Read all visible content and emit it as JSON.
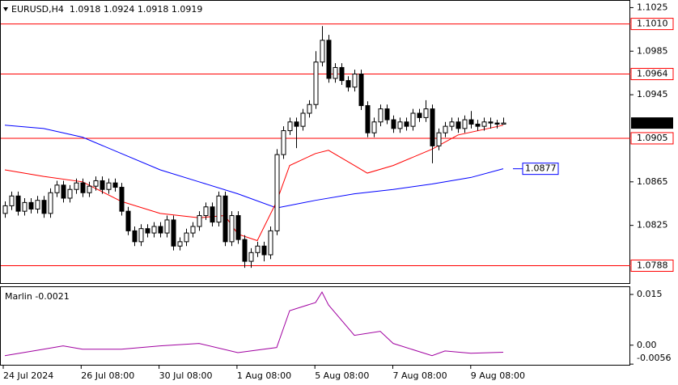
{
  "chart_data": [
    {
      "type": "candlestick",
      "title": "EURUSD,H4  1.0918 1.0924 1.0918 1.0919",
      "ylim": [
        1.0772,
        1.1032
      ],
      "yticks": [
        1.1025,
        1.0985,
        1.0945,
        1.0865,
        1.0825
      ],
      "levels": [
        {
          "value": 1.101,
          "label": "1.1010"
        },
        {
          "value": 1.0964,
          "label": "1.0964"
        },
        {
          "value": 1.0905,
          "label": "1.0905"
        },
        {
          "value": 1.0788,
          "label": "1.0788"
        }
      ],
      "level_color": "#ff0000",
      "up_color": "#ffffff",
      "down_color": "#000000",
      "candles": [
        [
          1.0836,
          1.0847,
          1.0832,
          1.0843
        ],
        [
          1.0843,
          1.0856,
          1.0839,
          1.0852
        ],
        [
          1.0852,
          1.0856,
          1.0834,
          1.0838
        ],
        [
          1.0838,
          1.085,
          1.0834,
          1.0846
        ],
        [
          1.0846,
          1.085,
          1.0836,
          1.084
        ],
        [
          1.084,
          1.0852,
          1.0836,
          1.0848
        ],
        [
          1.0848,
          1.0852,
          1.0832,
          1.0836
        ],
        [
          1.0836,
          1.0859,
          1.0832,
          1.0855
        ],
        [
          1.0855,
          1.0866,
          1.0851,
          1.0862
        ],
        [
          1.0862,
          1.0866,
          1.0846,
          1.085
        ],
        [
          1.085,
          1.0862,
          1.0846,
          1.0858
        ],
        [
          1.0858,
          1.0868,
          1.0854,
          1.0864
        ],
        [
          1.0864,
          1.0868,
          1.0851,
          1.0855
        ],
        [
          1.0855,
          1.0865,
          1.0851,
          1.0861
        ],
        [
          1.0861,
          1.087,
          1.0857,
          1.0866
        ],
        [
          1.0866,
          1.087,
          1.0854,
          1.0858
        ],
        [
          1.0858,
          1.0868,
          1.0854,
          1.0864
        ],
        [
          1.0864,
          1.0868,
          1.0856,
          1.086
        ],
        [
          1.086,
          1.0864,
          1.0834,
          1.0838
        ],
        [
          1.0838,
          1.0842,
          1.0816,
          1.082
        ],
        [
          1.082,
          1.0824,
          1.0806,
          1.081
        ],
        [
          1.081,
          1.0826,
          1.0806,
          1.0822
        ],
        [
          1.0822,
          1.0826,
          1.0814,
          1.0818
        ],
        [
          1.0818,
          1.0828,
          1.0814,
          1.0824
        ],
        [
          1.0824,
          1.0828,
          1.0814,
          1.0818
        ],
        [
          1.0818,
          1.0834,
          1.0814,
          1.083
        ],
        [
          1.083,
          1.0834,
          1.0802,
          1.0806
        ],
        [
          1.0806,
          1.0814,
          1.0802,
          1.081
        ],
        [
          1.081,
          1.0822,
          1.0806,
          1.0818
        ],
        [
          1.0818,
          1.0828,
          1.0814,
          1.0824
        ],
        [
          1.0824,
          1.0838,
          1.082,
          1.0834
        ],
        [
          1.0834,
          1.0846,
          1.083,
          1.0842
        ],
        [
          1.0842,
          1.0846,
          1.0824,
          1.0828
        ],
        [
          1.0828,
          1.0856,
          1.0824,
          1.0852
        ],
        [
          1.0852,
          1.0856,
          1.0806,
          1.081
        ],
        [
          1.081,
          1.0838,
          1.0806,
          1.0834
        ],
        [
          1.0834,
          1.0838,
          1.0808,
          1.0812
        ],
        [
          1.0812,
          1.0816,
          1.0786,
          1.0792
        ],
        [
          1.0792,
          1.0804,
          1.0786,
          1.08
        ],
        [
          1.08,
          1.081,
          1.0796,
          1.0806
        ],
        [
          1.0806,
          1.081,
          1.0792,
          1.0798
        ],
        [
          1.0798,
          1.0824,
          1.0794,
          1.082
        ],
        [
          1.082,
          1.0895,
          1.0816,
          1.089
        ],
        [
          1.089,
          1.0916,
          1.0886,
          1.0912
        ],
        [
          1.0912,
          1.0924,
          1.0908,
          1.092
        ],
        [
          1.092,
          1.0924,
          1.0896,
          1.0916
        ],
        [
          1.0916,
          1.0932,
          1.0912,
          1.0928
        ],
        [
          1.0928,
          1.094,
          1.0924,
          1.0936
        ],
        [
          1.0936,
          1.0985,
          1.0932,
          1.0975
        ],
        [
          1.0975,
          1.1008,
          1.0971,
          1.0995
        ],
        [
          1.0995,
          1.1,
          1.0956,
          1.096
        ],
        [
          1.096,
          1.0974,
          1.0956,
          1.097
        ],
        [
          1.097,
          1.0974,
          1.0954,
          1.0958
        ],
        [
          1.0958,
          1.0962,
          1.0948,
          1.0952
        ],
        [
          1.0952,
          1.0968,
          1.0948,
          1.0964
        ],
        [
          1.0964,
          1.0968,
          1.0931,
          1.0935
        ],
        [
          1.0935,
          1.0939,
          1.0906,
          1.091
        ],
        [
          1.091,
          1.0924,
          1.0906,
          1.092
        ],
        [
          1.092,
          1.0936,
          1.0916,
          1.0932
        ],
        [
          1.0932,
          1.0936,
          1.0918,
          1.0922
        ],
        [
          1.0922,
          1.0926,
          1.091,
          1.0914
        ],
        [
          1.0914,
          1.0924,
          1.091,
          1.092
        ],
        [
          1.092,
          1.0924,
          1.0912,
          1.0916
        ],
        [
          1.0916,
          1.0932,
          1.0912,
          1.0928
        ],
        [
          1.0928,
          1.0932,
          1.092,
          1.0924
        ],
        [
          1.0924,
          1.094,
          1.092,
          1.0932
        ],
        [
          1.0932,
          1.0936,
          1.0882,
          1.0898
        ],
        [
          1.0898,
          1.0914,
          1.0894,
          1.091
        ],
        [
          1.091,
          1.092,
          1.0906,
          1.0916
        ],
        [
          1.0916,
          1.0924,
          1.0912,
          1.092
        ],
        [
          1.092,
          1.0924,
          1.091,
          1.0914
        ],
        [
          1.0914,
          1.0926,
          1.091,
          1.0922
        ],
        [
          1.0922,
          1.093,
          1.0914,
          1.0918
        ],
        [
          1.0918,
          1.0922,
          1.0912,
          1.0916
        ],
        [
          1.0916,
          1.0924,
          1.0912,
          1.092
        ],
        [
          1.092,
          1.0924,
          1.0914,
          1.0919
        ],
        [
          1.0919,
          1.0922,
          1.0914,
          1.0918
        ],
        [
          1.0918,
          1.0924,
          1.0918,
          1.0919
        ]
      ],
      "lines": [
        {
          "color": "#0000ff",
          "x": [
            0,
            6,
            12,
            18,
            24,
            30,
            36,
            42,
            48,
            54,
            60,
            66,
            72,
            77
          ],
          "values": [
            1.0917,
            1.0914,
            1.0906,
            1.0891,
            1.0876,
            1.0865,
            1.0854,
            1.0841,
            1.0848,
            1.0854,
            1.0858,
            1.0863,
            1.0869,
            1.0877
          ]
        },
        {
          "color": "#ff0000",
          "x": [
            0,
            6,
            12,
            18,
            24,
            30,
            34,
            36,
            39,
            42,
            44,
            48,
            50,
            54,
            56,
            60,
            66,
            70,
            77
          ],
          "values": [
            1.0876,
            1.087,
            1.0865,
            1.0847,
            1.0836,
            1.0832,
            1.0834,
            1.0817,
            1.0811,
            1.0847,
            1.088,
            1.0891,
            1.0894,
            1.088,
            1.0873,
            1.088,
            1.0895,
            1.0908,
            1.0917
          ]
        }
      ]
    },
    {
      "type": "line",
      "title": "Marlin -0.0021",
      "ylim": [
        -0.0058,
        0.0174
      ],
      "yticks": [
        0.015,
        {
          "value": 0,
          "label": "0.00"
        },
        -0.0056
      ],
      "color": "#a000a0",
      "x": [
        0,
        6,
        9,
        12,
        18,
        24,
        30,
        36,
        42,
        44,
        48,
        49,
        50,
        54,
        58,
        60,
        66,
        68,
        72,
        77
      ],
      "values": [
        -0.0031,
        -0.0012,
        -0.0002,
        -0.0012,
        -0.0012,
        -0.0002,
        0.0005,
        -0.0022,
        -0.0007,
        0.0102,
        0.0126,
        0.0157,
        0.0119,
        0.0029,
        0.0041,
        0.0005,
        -0.0031,
        -0.0017,
        -0.0024,
        -0.0021
      ],
      "xlabels": [
        "24 Jul 2024",
        "26 Jul 08:00",
        "30 Jul 08:00",
        "1 Aug 08:00",
        "5 Aug 08:00",
        "7 Aug 08:00",
        "9 Aug 08:00"
      ]
    }
  ]
}
